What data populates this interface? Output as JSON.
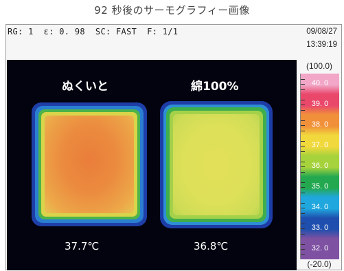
{
  "caption": "92 秒後のサーモグラフィー画像",
  "status_bar": {
    "text": "RG: 1  ε: 0. 98  SC: FAST  F: 1/1",
    "date": "09/08/27",
    "time": "13:39:19"
  },
  "samples": [
    {
      "label": "ぬくいと",
      "temperature": "37.7℃"
    },
    {
      "label": "綿100%",
      "temperature": "36.8℃"
    }
  ],
  "scale": {
    "max": "(100.0)",
    "min": "(-20.0)",
    "bands": [
      {
        "label": "40. 0",
        "color": "#f2a7c8"
      },
      {
        "label": "39. 0",
        "color": "#e9486b"
      },
      {
        "label": "38. 0",
        "color": "#f1903a"
      },
      {
        "label": "37. 0",
        "color": "#f1d93d"
      },
      {
        "label": "36. 0",
        "color": "#a6d23c"
      },
      {
        "label": "35. 0",
        "color": "#23a850"
      },
      {
        "label": "34. 0",
        "color": "#20a7de"
      },
      {
        "label": "33. 0",
        "color": "#1f4fae"
      },
      {
        "label": "32. 0",
        "color": "#7e51a2"
      }
    ]
  },
  "colors": {
    "sample_left_core": "#e98a3e",
    "sample_right_core": "#dbe05a",
    "edge_green": "#2ea84c",
    "edge_blue": "#2d6ac3"
  }
}
